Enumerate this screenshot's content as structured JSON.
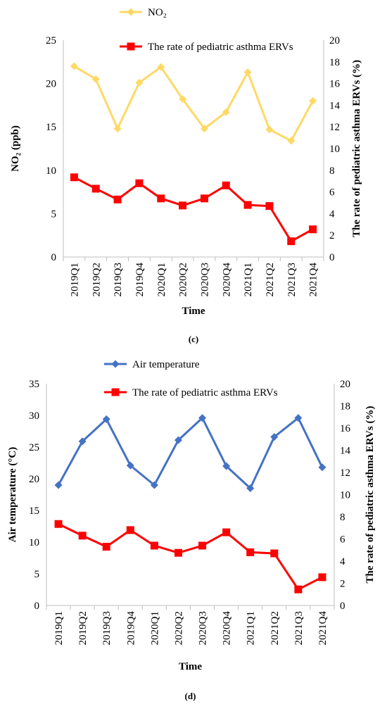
{
  "chart_data": [
    {
      "type": "line",
      "panel_label": "(c)",
      "categories": [
        "2019Q1",
        "2019Q2",
        "2019Q3",
        "2019Q4",
        "2020Q1",
        "2020Q2",
        "2020Q3",
        "2020Q4",
        "2021Q1",
        "2021Q2",
        "2021Q3",
        "2021Q4"
      ],
      "xlabel": "Time",
      "ylabel": "NO₂ (ppb)",
      "ylabel_right": "The rate of pediatric asthma ERVs (%)",
      "ylim": [
        0,
        25
      ],
      "yticks": [
        "0",
        "5",
        "10",
        "15",
        "20",
        "25"
      ],
      "ylim_right": [
        0,
        20
      ],
      "yticks_right": [
        "0",
        "2",
        "4",
        "6",
        "8",
        "10",
        "12",
        "14",
        "16",
        "18",
        "20"
      ],
      "legend_position": "top",
      "series": [
        {
          "name": "NO₂",
          "axis": "left",
          "color": "#FFD966",
          "marker": "diamond",
          "values": [
            22.0,
            20.5,
            14.8,
            20.1,
            21.9,
            18.2,
            14.8,
            16.7,
            21.3,
            14.7,
            13.4,
            18.0
          ]
        },
        {
          "name": "The rate of pediatric asthma ERVs",
          "axis": "right",
          "color": "#FF0000",
          "marker": "square",
          "values": [
            7.35,
            6.3,
            5.3,
            6.8,
            5.4,
            4.75,
            5.4,
            6.6,
            4.8,
            4.7,
            1.45,
            2.55
          ]
        }
      ]
    },
    {
      "type": "line",
      "panel_label": "(d)",
      "categories": [
        "2019Q1",
        "2019Q2",
        "2019Q3",
        "2019Q4",
        "2020Q1",
        "2020Q2",
        "2020Q3",
        "2020Q4",
        "2021Q1",
        "2021Q2",
        "2021Q3",
        "2021Q4"
      ],
      "xlabel": "Time",
      "ylabel": "Air temperature (°C)",
      "ylabel_right": "The rate of pediatric asthma ERVs (%)",
      "ylim": [
        0,
        35
      ],
      "yticks": [
        "0",
        "5",
        "10",
        "15",
        "20",
        "25",
        "30",
        "35"
      ],
      "ylim_right": [
        0,
        20
      ],
      "yticks_right": [
        "0",
        "2",
        "4",
        "6",
        "8",
        "10",
        "12",
        "14",
        "16",
        "18",
        "20"
      ],
      "legend_position": "top",
      "series": [
        {
          "name": "Air temperature",
          "axis": "left",
          "color": "#4472C4",
          "marker": "diamond",
          "values": [
            19.0,
            25.9,
            29.4,
            22.1,
            19.0,
            26.1,
            29.6,
            22.0,
            18.5,
            26.6,
            29.6,
            21.8
          ]
        },
        {
          "name": "The rate of pediatric asthma ERVs",
          "axis": "right",
          "color": "#FF0000",
          "marker": "square",
          "values": [
            7.35,
            6.3,
            5.3,
            6.8,
            5.4,
            4.75,
            5.4,
            6.6,
            4.8,
            4.7,
            1.45,
            2.55
          ]
        }
      ]
    }
  ]
}
